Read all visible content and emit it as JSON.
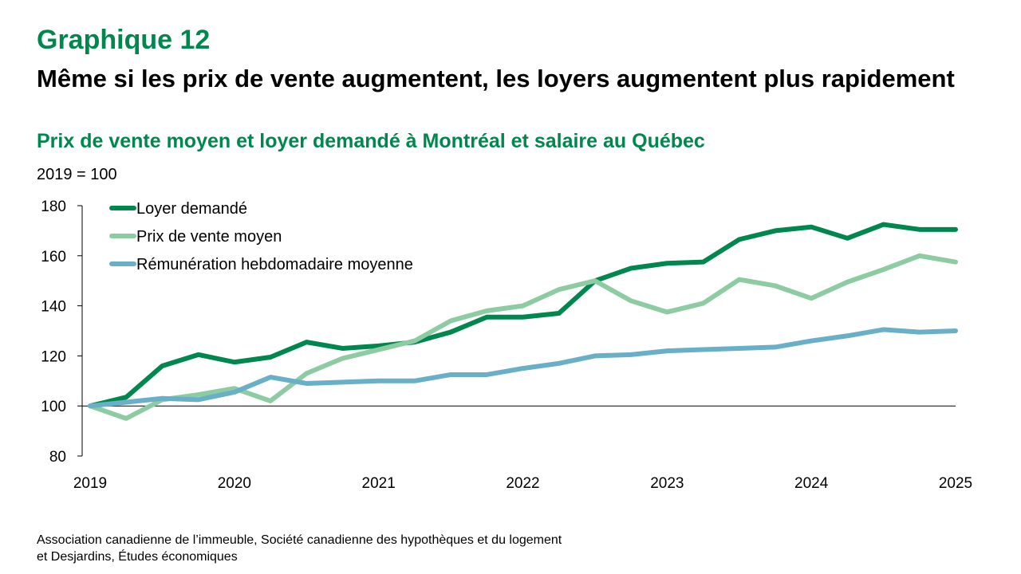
{
  "slide": {
    "label": "Graphique 12",
    "headline": "Même si les prix de vente augmentent, les loyers augmentent plus rapidement",
    "subtitle": "Prix de vente moyen et loyer demandé à Montréal et salaire au Québec",
    "unit_note": "2019 = 100",
    "source_lines": [
      "Association canadienne de l’immeuble, Société canadienne des hypothèques et du logement",
      "et Desjardins, Études économiques"
    ]
  },
  "colors": {
    "brand_green": "#00874E",
    "loyer": "#00874E",
    "prix": "#8DCCA2",
    "remuneration": "#69AFC8"
  },
  "chart_data": {
    "type": "line",
    "x_ticks": [
      "2019",
      "2020",
      "2021",
      "2022",
      "2023",
      "2024",
      "2025"
    ],
    "xlim": [
      2019,
      2025
    ],
    "ylim": [
      80,
      180
    ],
    "y_ticks": [
      80,
      100,
      120,
      140,
      160,
      180
    ],
    "grid": false,
    "legend_position": "top-left",
    "x": [
      2019.0,
      2019.25,
      2019.5,
      2019.75,
      2020.0,
      2020.25,
      2020.5,
      2020.75,
      2021.0,
      2021.25,
      2021.5,
      2021.75,
      2022.0,
      2022.25,
      2022.5,
      2022.75,
      2023.0,
      2023.25,
      2023.5,
      2023.75,
      2024.0,
      2024.25,
      2024.5,
      2024.75,
      2025.0
    ],
    "series": [
      {
        "name": "Loyer demandé",
        "color_key": "loyer",
        "values": [
          100,
          103.5,
          116,
          120.5,
          117.5,
          119.5,
          125.5,
          123,
          124,
          125.5,
          129.5,
          135.5,
          135.5,
          137,
          150,
          155,
          157,
          157.5,
          166.5,
          170,
          171.5,
          167,
          172.5,
          170.5,
          170.5
        ]
      },
      {
        "name": "Prix de vente moyen",
        "color_key": "prix",
        "values": [
          100,
          95,
          102.5,
          104.5,
          107,
          102,
          113,
          119,
          122.5,
          126,
          134,
          138,
          140,
          146.5,
          150,
          142,
          137.5,
          141,
          150.5,
          148,
          143,
          149.5,
          154.5,
          160,
          157.5
        ]
      },
      {
        "name": "Rémunération hebdomadaire moyenne",
        "color_key": "remuneration",
        "values": [
          100,
          101.5,
          103,
          102.5,
          105.5,
          111.5,
          109,
          109.5,
          110,
          110,
          112.5,
          112.5,
          115,
          117,
          120,
          120.5,
          122,
          122.5,
          123,
          123.5,
          126,
          128,
          130.5,
          129.5,
          130
        ]
      }
    ]
  }
}
